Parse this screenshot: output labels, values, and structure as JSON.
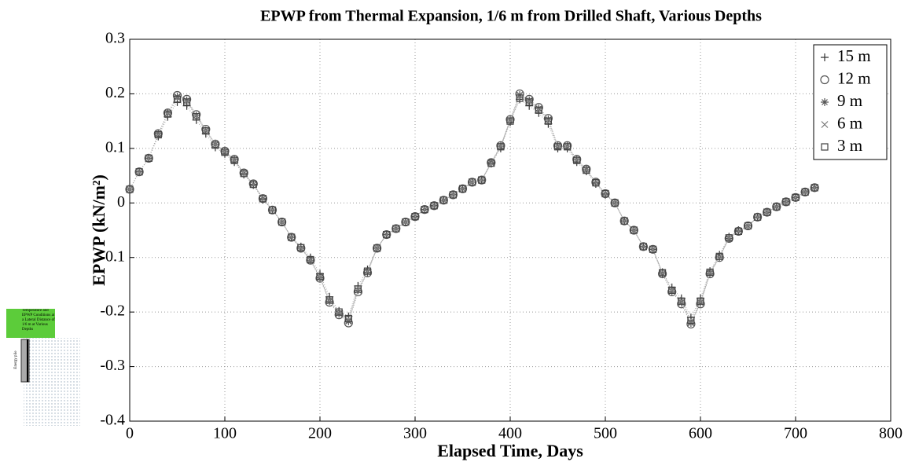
{
  "chart_data": {
    "type": "line",
    "title": "EPWP from Thermal Expansion, 1/6 m from Drilled Shaft, Various Depths",
    "x_label": "Elapsed Time, Days",
    "y_label": "EPWP (kN/m²)",
    "x": [
      0,
      10,
      20,
      30,
      40,
      50,
      60,
      70,
      80,
      90,
      100,
      110,
      120,
      130,
      140,
      150,
      160,
      170,
      180,
      190,
      200,
      210,
      220,
      230,
      240,
      250,
      260,
      270,
      280,
      290,
      300,
      310,
      320,
      330,
      340,
      350,
      360,
      370,
      380,
      390,
      400,
      410,
      420,
      430,
      440,
      450,
      460,
      470,
      480,
      490,
      500,
      510,
      520,
      530,
      540,
      550,
      560,
      570,
      580,
      590,
      600,
      610,
      620,
      630,
      640,
      650,
      660,
      670,
      680,
      690,
      700,
      710,
      720
    ],
    "series": [
      {
        "name": "15 m",
        "color": "#333333",
        "marker": "plus",
        "values": [
          0.025,
          0.057,
          0.082,
          0.122,
          0.158,
          0.185,
          0.178,
          0.152,
          0.127,
          0.102,
          0.09,
          0.075,
          0.052,
          0.033,
          0.006,
          -0.013,
          -0.035,
          -0.063,
          -0.08,
          -0.1,
          -0.13,
          -0.172,
          -0.198,
          -0.208,
          -0.152,
          -0.122,
          -0.083,
          -0.058,
          -0.047,
          -0.035,
          -0.025,
          -0.012,
          -0.005,
          0.005,
          0.015,
          0.026,
          0.038,
          0.042,
          0.072,
          0.1,
          0.148,
          0.19,
          0.178,
          0.165,
          0.145,
          0.1,
          0.1,
          0.075,
          0.058,
          0.035,
          0.015,
          0,
          -0.033,
          -0.05,
          -0.08,
          -0.085,
          -0.127,
          -0.155,
          -0.175,
          -0.21,
          -0.175,
          -0.125,
          -0.095,
          -0.062,
          -0.05,
          -0.042,
          -0.026,
          -0.017,
          -0.007,
          0.002,
          0.01,
          0.02,
          0.028
        ]
      },
      {
        "name": "12 m",
        "color": "#555555",
        "marker": "circle",
        "values": [
          0.025,
          0.057,
          0.082,
          0.127,
          0.165,
          0.197,
          0.19,
          0.162,
          0.135,
          0.108,
          0.095,
          0.08,
          0.055,
          0.035,
          0.008,
          -0.013,
          -0.035,
          -0.063,
          -0.083,
          -0.105,
          -0.138,
          -0.182,
          -0.205,
          -0.22,
          -0.163,
          -0.128,
          -0.083,
          -0.058,
          -0.047,
          -0.035,
          -0.025,
          -0.012,
          -0.005,
          0.005,
          0.015,
          0.026,
          0.038,
          0.042,
          0.074,
          0.105,
          0.153,
          0.2,
          0.19,
          0.175,
          0.155,
          0.105,
          0.105,
          0.08,
          0.062,
          0.038,
          0.017,
          0,
          -0.033,
          -0.05,
          -0.08,
          -0.085,
          -0.13,
          -0.163,
          -0.185,
          -0.222,
          -0.185,
          -0.13,
          -0.1,
          -0.065,
          -0.052,
          -0.042,
          -0.026,
          -0.017,
          -0.007,
          0.002,
          0.01,
          0.02,
          0.028
        ]
      },
      {
        "name": "9 m",
        "color": "#555555",
        "marker": "star",
        "values": [
          0.025,
          0.057,
          0.082,
          0.127,
          0.165,
          0.195,
          0.188,
          0.16,
          0.133,
          0.107,
          0.094,
          0.079,
          0.054,
          0.034,
          0.008,
          -0.013,
          -0.035,
          -0.063,
          -0.083,
          -0.105,
          -0.137,
          -0.18,
          -0.203,
          -0.217,
          -0.16,
          -0.127,
          -0.083,
          -0.058,
          -0.047,
          -0.035,
          -0.025,
          -0.012,
          -0.005,
          0.005,
          0.015,
          0.026,
          0.038,
          0.042,
          0.074,
          0.104,
          0.152,
          0.198,
          0.188,
          0.173,
          0.153,
          0.104,
          0.104,
          0.079,
          0.061,
          0.037,
          0.017,
          0,
          -0.033,
          -0.05,
          -0.08,
          -0.085,
          -0.13,
          -0.162,
          -0.183,
          -0.22,
          -0.183,
          -0.129,
          -0.099,
          -0.065,
          -0.052,
          -0.042,
          -0.026,
          -0.017,
          -0.007,
          0.002,
          0.01,
          0.02,
          0.028
        ]
      },
      {
        "name": "6 m",
        "color": "#777777",
        "marker": "x",
        "values": [
          0.025,
          0.057,
          0.082,
          0.126,
          0.164,
          0.193,
          0.187,
          0.16,
          0.133,
          0.107,
          0.094,
          0.079,
          0.054,
          0.034,
          0.008,
          -0.013,
          -0.035,
          -0.063,
          -0.083,
          -0.104,
          -0.136,
          -0.179,
          -0.202,
          -0.215,
          -0.16,
          -0.126,
          -0.083,
          -0.058,
          -0.047,
          -0.035,
          -0.025,
          -0.012,
          -0.005,
          0.005,
          0.015,
          0.026,
          0.038,
          0.042,
          0.073,
          0.104,
          0.152,
          0.197,
          0.187,
          0.172,
          0.152,
          0.104,
          0.104,
          0.079,
          0.061,
          0.037,
          0.017,
          0,
          -0.033,
          -0.05,
          -0.08,
          -0.085,
          -0.129,
          -0.161,
          -0.182,
          -0.218,
          -0.182,
          -0.128,
          -0.099,
          -0.064,
          -0.052,
          -0.042,
          -0.026,
          -0.017,
          -0.007,
          0.002,
          0.01,
          0.02,
          0.028
        ]
      },
      {
        "name": "3 m",
        "color": "#444444",
        "marker": "square",
        "values": [
          0.025,
          0.057,
          0.082,
          0.125,
          0.163,
          0.19,
          0.185,
          0.158,
          0.132,
          0.106,
          0.093,
          0.078,
          0.054,
          0.034,
          0.008,
          -0.013,
          -0.035,
          -0.063,
          -0.082,
          -0.104,
          -0.135,
          -0.178,
          -0.2,
          -0.212,
          -0.158,
          -0.125,
          -0.083,
          -0.058,
          -0.047,
          -0.035,
          -0.025,
          -0.012,
          -0.005,
          0.005,
          0.015,
          0.026,
          0.038,
          0.042,
          0.073,
          0.103,
          0.15,
          0.192,
          0.185,
          0.17,
          0.15,
          0.103,
          0.103,
          0.078,
          0.06,
          0.037,
          0.017,
          0,
          -0.033,
          -0.05,
          -0.08,
          -0.085,
          -0.128,
          -0.16,
          -0.18,
          -0.215,
          -0.18,
          -0.127,
          -0.098,
          -0.064,
          -0.052,
          -0.042,
          -0.026,
          -0.017,
          -0.007,
          0.002,
          0.01,
          0.02,
          0.028
        ]
      }
    ],
    "xlim": [
      0,
      800
    ],
    "xticks": [
      0,
      100,
      200,
      300,
      400,
      500,
      600,
      700,
      800
    ],
    "ylim": [
      -0.4,
      0.3
    ],
    "yticks": [
      -0.4,
      -0.3,
      -0.2,
      -0.1,
      0,
      0.1,
      0.2,
      0.3
    ],
    "grid": true,
    "legend": "upper right"
  },
  "inset": {
    "caption": "Temperature and EPWP Conditions at a Lateral Distance of 1/6 m at Various Depths",
    "pile_label": "Energy pile"
  }
}
